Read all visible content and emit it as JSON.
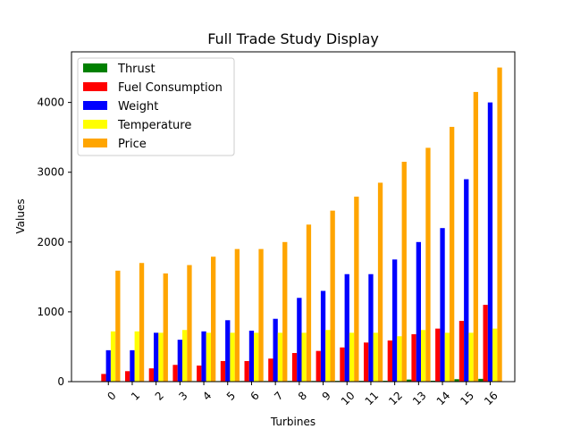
{
  "chart_data": {
    "type": "bar",
    "title": "Full Trade Study Display",
    "xlabel": "Turbines",
    "ylabel": "Values",
    "categories": [
      "0",
      "1",
      "2",
      "3",
      "4",
      "5",
      "6",
      "7",
      "8",
      "9",
      "10",
      "11",
      "12",
      "13",
      "14",
      "15",
      "16"
    ],
    "ylim": [
      0,
      4725
    ],
    "yticks": [
      0,
      1000,
      2000,
      3000,
      4000
    ],
    "legend_position": "top-left",
    "grid": false,
    "series": [
      {
        "name": "Thrust",
        "color": "#008000",
        "values": [
          5,
          6,
          7,
          7,
          8,
          8,
          9,
          9,
          10,
          10,
          11,
          11,
          12,
          30,
          13,
          35,
          40
        ]
      },
      {
        "name": "Fuel Consumption",
        "color": "#ff0000",
        "values": [
          110,
          150,
          190,
          240,
          230,
          295,
          295,
          330,
          410,
          440,
          490,
          560,
          590,
          680,
          760,
          870,
          1100
        ]
      },
      {
        "name": "Weight",
        "color": "#0000ff",
        "values": [
          450,
          450,
          700,
          600,
          720,
          880,
          730,
          900,
          1200,
          1300,
          1540,
          1540,
          1750,
          2000,
          2200,
          2900,
          4000
        ]
      },
      {
        "name": "Temperature",
        "color": "#ffff00",
        "values": [
          720,
          720,
          700,
          740,
          700,
          700,
          700,
          700,
          700,
          740,
          700,
          700,
          650,
          740,
          700,
          700,
          760
        ]
      },
      {
        "name": "Price",
        "color": "#ffa500",
        "values": [
          1590,
          1700,
          1550,
          1670,
          1790,
          1900,
          1900,
          2000,
          2250,
          2450,
          2650,
          2850,
          3150,
          3350,
          3650,
          4150,
          4500
        ]
      }
    ]
  }
}
